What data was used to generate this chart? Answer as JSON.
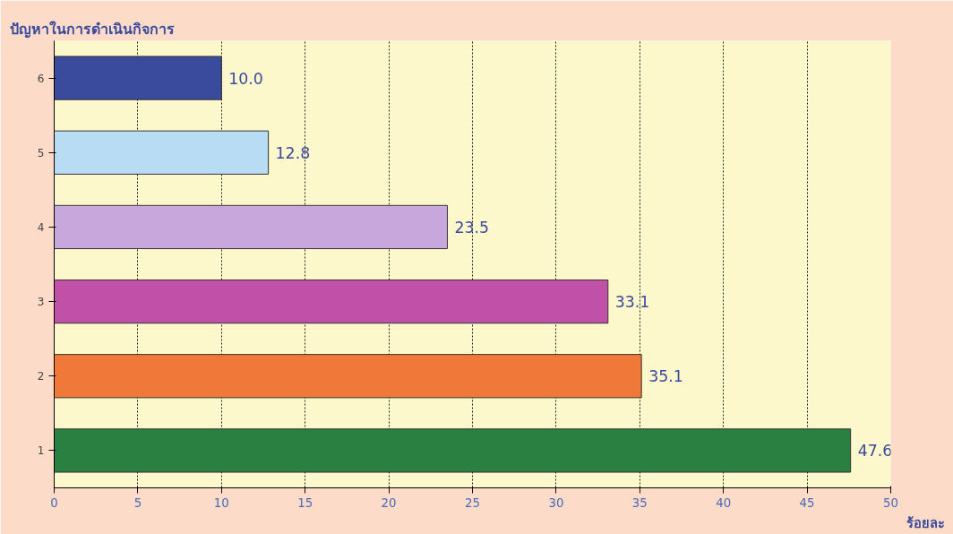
{
  "chart_data": {
    "type": "bar",
    "orientation": "horizontal",
    "ylabel": "ปัญหาในการดำเนินกิจการ",
    "xlabel": "ร้อยละ",
    "categories": [
      "6",
      "5",
      "4",
      "3",
      "2",
      "1"
    ],
    "values": [
      10.0,
      12.8,
      23.5,
      33.1,
      35.1,
      47.6
    ],
    "value_labels": [
      "10.0",
      "12.8",
      "23.5",
      "33.1",
      "35.1",
      "47.6"
    ],
    "colors": [
      "#3a4a9c",
      "#b8dcf4",
      "#c8a8dc",
      "#c050a8",
      "#f07838",
      "#2a8040"
    ],
    "xlim": [
      0,
      50
    ],
    "xticks": [
      0,
      5,
      10,
      15,
      20,
      25,
      30,
      35,
      40,
      45,
      50
    ],
    "grid": "x"
  }
}
